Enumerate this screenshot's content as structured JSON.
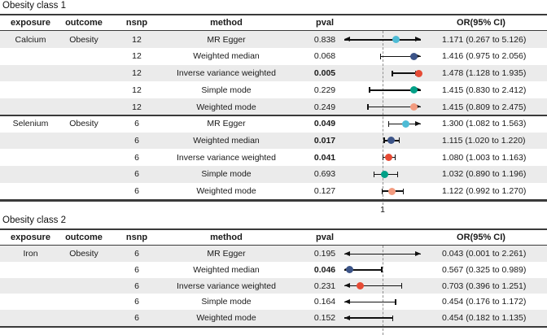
{
  "figure": {
    "colors": {
      "mr_egger_marker": "#4DBBD5",
      "weighted_median_marker": "#3C5488",
      "ivw_marker": "#E64B35",
      "simple_mode_marker": "#00A087",
      "weighted_mode_marker": "#F39B7F",
      "row_alt_background": "#ebebeb",
      "border": "#3a3a3a",
      "reference_dash": "#8f8f8f"
    }
  },
  "chart_data": [
    {
      "type": "forest",
      "title": "Obesity class 1",
      "columns": [
        "exposure",
        "outcome",
        "nsnp",
        "method",
        "pval",
        "OR(95% CI)"
      ],
      "x_axis": {
        "scale": "linear",
        "min": 0.5,
        "max": 1.5,
        "ref": 1,
        "ref_label": "1",
        "label_shown": true
      },
      "groups": [
        {
          "exposure": "Calcium",
          "outcome": "Obesity",
          "rows": [
            {
              "nsnp": "12",
              "method": "MR Egger",
              "pval": "0.838",
              "pval_bold": false,
              "or": 1.171,
              "ci_low": 0.267,
              "ci_high": 5.126,
              "or_label": "1.171 (0.267 to 5.126)",
              "marker_color": "#4DBBD5"
            },
            {
              "nsnp": "12",
              "method": "Weighted median",
              "pval": "0.068",
              "pval_bold": false,
              "or": 1.416,
              "ci_low": 0.975,
              "ci_high": 2.056,
              "or_label": "1.416 (0.975 to 2.056)",
              "marker_color": "#3C5488"
            },
            {
              "nsnp": "12",
              "method": "Inverse variance weighted",
              "pval": "0.005",
              "pval_bold": true,
              "or": 1.478,
              "ci_low": 1.128,
              "ci_high": 1.935,
              "or_label": "1.478 (1.128 to 1.935)",
              "marker_color": "#E64B35"
            },
            {
              "nsnp": "12",
              "method": "Simple mode",
              "pval": "0.229",
              "pval_bold": false,
              "or": 1.415,
              "ci_low": 0.83,
              "ci_high": 2.412,
              "or_label": "1.415 (0.830 to 2.412)",
              "marker_color": "#00A087"
            },
            {
              "nsnp": "12",
              "method": "Weighted mode",
              "pval": "0.249",
              "pval_bold": false,
              "or": 1.415,
              "ci_low": 0.809,
              "ci_high": 2.475,
              "or_label": "1.415 (0.809 to 2.475)",
              "marker_color": "#F39B7F"
            }
          ]
        },
        {
          "exposure": "Selenium",
          "outcome": "Obesity",
          "rows": [
            {
              "nsnp": "6",
              "method": "MR Egger",
              "pval": "0.049",
              "pval_bold": true,
              "or": 1.3,
              "ci_low": 1.082,
              "ci_high": 1.563,
              "or_label": "1.300 (1.082 to 1.563)",
              "marker_color": "#4DBBD5"
            },
            {
              "nsnp": "6",
              "method": "Weighted median",
              "pval": "0.017",
              "pval_bold": true,
              "or": 1.115,
              "ci_low": 1.02,
              "ci_high": 1.22,
              "or_label": "1.115 (1.020 to 1.220)",
              "marker_color": "#3C5488"
            },
            {
              "nsnp": "6",
              "method": "Inverse variance weighted",
              "pval": "0.041",
              "pval_bold": true,
              "or": 1.08,
              "ci_low": 1.003,
              "ci_high": 1.163,
              "or_label": "1.080 (1.003 to 1.163)",
              "marker_color": "#E64B35"
            },
            {
              "nsnp": "6",
              "method": "Simple mode",
              "pval": "0.693",
              "pval_bold": false,
              "or": 1.032,
              "ci_low": 0.89,
              "ci_high": 1.196,
              "or_label": "1.032 (0.890 to 1.196)",
              "marker_color": "#00A087"
            },
            {
              "nsnp": "6",
              "method": "Weighted mode",
              "pval": "0.127",
              "pval_bold": false,
              "or": 1.122,
              "ci_low": 0.992,
              "ci_high": 1.27,
              "or_label": "1.122 (0.992 to 1.270)",
              "marker_color": "#F39B7F"
            }
          ]
        }
      ]
    },
    {
      "type": "forest",
      "title": "Obesity class 2",
      "columns": [
        "exposure",
        "outcome",
        "nsnp",
        "method",
        "pval",
        "OR(95% CI)"
      ],
      "x_axis": {
        "scale": "linear",
        "min": 0.5,
        "max": 1.5,
        "ref": 1,
        "ref_label": "1",
        "label_shown": false
      },
      "groups": [
        {
          "exposure": "Iron",
          "outcome": "Obesity",
          "rows": [
            {
              "nsnp": "6",
              "method": "MR Egger",
              "pval": "0.195",
              "pval_bold": false,
              "or": 0.043,
              "ci_low": 0.001,
              "ci_high": 2.261,
              "or_label": "0.043 (0.001 to 2.261)",
              "marker_color": "#4DBBD5"
            },
            {
              "nsnp": "6",
              "method": "Weighted median",
              "pval": "0.046",
              "pval_bold": true,
              "or": 0.567,
              "ci_low": 0.325,
              "ci_high": 0.989,
              "or_label": "0.567 (0.325 to 0.989)",
              "marker_color": "#3C5488"
            },
            {
              "nsnp": "6",
              "method": "Inverse variance weighted",
              "pval": "0.231",
              "pval_bold": false,
              "or": 0.703,
              "ci_low": 0.396,
              "ci_high": 1.251,
              "or_label": "0.703 (0.396 to 1.251)",
              "marker_color": "#E64B35"
            },
            {
              "nsnp": "6",
              "method": "Simple mode",
              "pval": "0.164",
              "pval_bold": false,
              "or": 0.454,
              "ci_low": 0.176,
              "ci_high": 1.172,
              "or_label": "0.454 (0.176 to 1.172)",
              "marker_color": "#00A087"
            },
            {
              "nsnp": "6",
              "method": "Weighted mode",
              "pval": "0.152",
              "pval_bold": false,
              "or": 0.454,
              "ci_low": 0.182,
              "ci_high": 1.135,
              "or_label": "0.454 (0.182 to 1.135)",
              "marker_color": "#F39B7F"
            }
          ]
        }
      ]
    }
  ]
}
